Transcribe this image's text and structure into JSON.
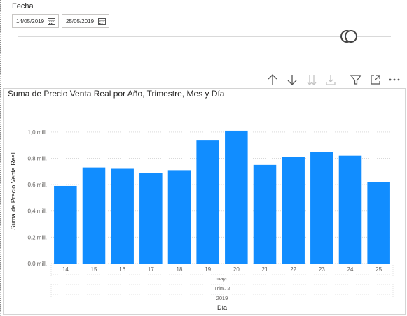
{
  "slicer": {
    "title": "Fecha",
    "start_date": "14/05/2019",
    "end_date": "25/05/2019"
  },
  "toolbar": {
    "icons": [
      "arrow-up-icon",
      "arrow-down-icon",
      "double-arrow-down-icon",
      "expand-hierarchy-icon",
      "filter-icon",
      "focus-mode-icon",
      "more-options-icon"
    ]
  },
  "visual": {
    "title": "Suma de Precio Venta Real por Año, Trimestre, Mes y Día"
  },
  "chart_data": {
    "type": "bar",
    "title": "Suma de Precio Venta Real por Año, Trimestre, Mes y Día",
    "xlabel": "Día",
    "ylabel": "Suma de Precio Venta Real",
    "categories": [
      "14",
      "15",
      "16",
      "17",
      "18",
      "19",
      "20",
      "21",
      "22",
      "23",
      "24",
      "25"
    ],
    "values": [
      0.59,
      0.73,
      0.72,
      0.69,
      0.71,
      0.94,
      1.01,
      0.75,
      0.81,
      0.85,
      0.82,
      0.62
    ],
    "hierarchy_labels": {
      "month": "mayo",
      "quarter": "Trim. 2",
      "year": "2019"
    },
    "yticks": [
      "0,0 mill.",
      "0,2 mill.",
      "0,4 mill.",
      "0,6 mill.",
      "0,8 mill.",
      "1,0 mill."
    ],
    "ylim": [
      0,
      1.1
    ],
    "grid": true,
    "bar_color": "#118dff"
  }
}
